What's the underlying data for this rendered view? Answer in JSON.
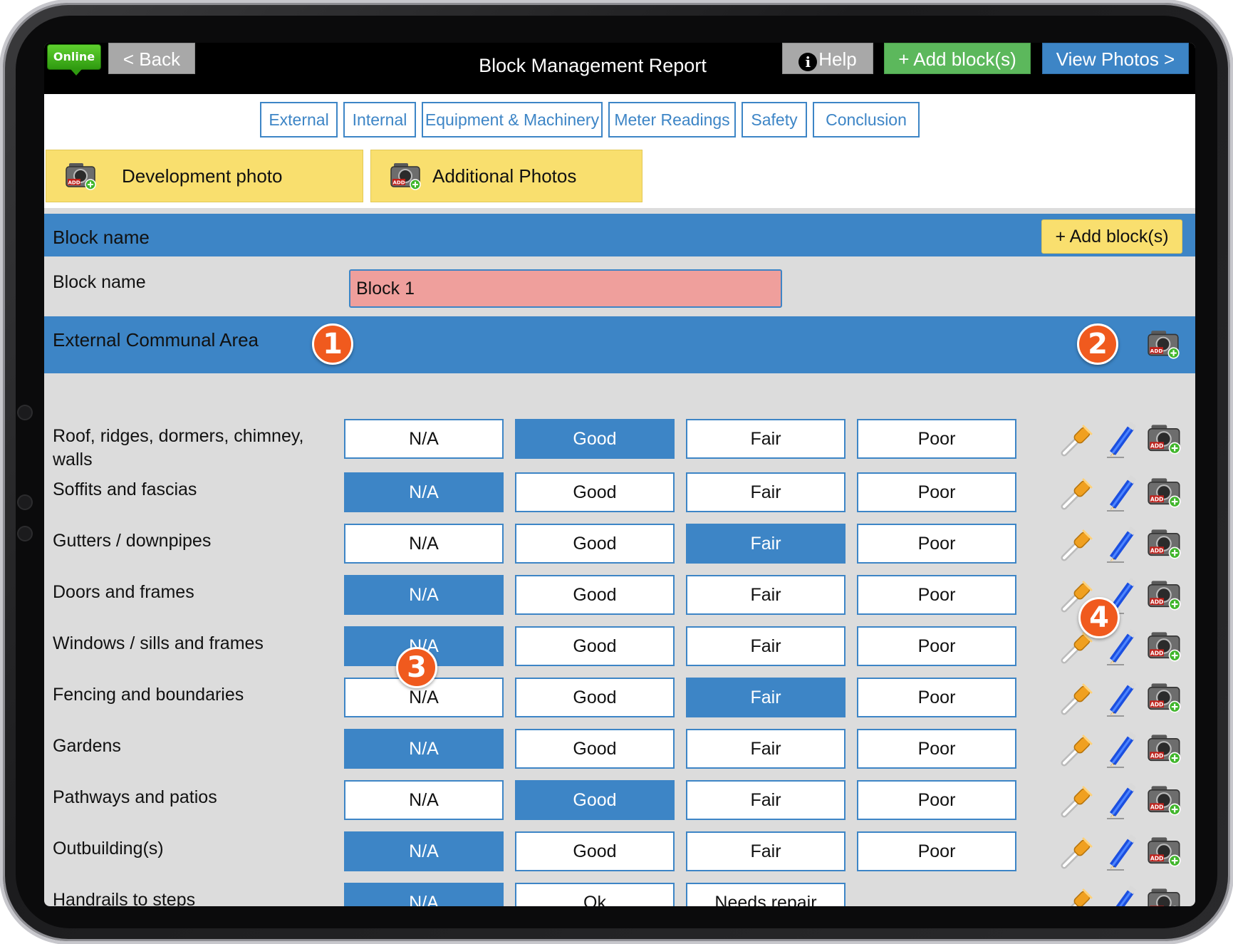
{
  "header": {
    "status_badge": "Online",
    "back_label": "< Back",
    "title": "Block Management Report",
    "help_label": "Help",
    "help_icon_glyph": "i",
    "add_block_label": "+ Add block(s)",
    "view_photos_label": "View Photos >"
  },
  "tabs": [
    {
      "label": "External"
    },
    {
      "label": "Internal"
    },
    {
      "label": "Equipment & Machinery"
    },
    {
      "label": "Meter Readings"
    },
    {
      "label": "Safety"
    },
    {
      "label": "Conclusion"
    }
  ],
  "photos": {
    "development_label": "Development photo",
    "additional_label": "Additional Photos"
  },
  "block_section": {
    "title": "Block name",
    "add_block_label": "+ Add block(s)",
    "field_label": "Block name",
    "field_value": "Block 1"
  },
  "external_section": {
    "title": "External Communal Area"
  },
  "callouts": [
    "1",
    "2",
    "3",
    "4"
  ],
  "items": [
    {
      "label": "Roof, ridges, dormers, chimney, walls",
      "options": [
        "N/A",
        "Good",
        "Fair",
        "Poor"
      ],
      "selected": 1
    },
    {
      "label": "Soffits and fascias",
      "options": [
        "N/A",
        "Good",
        "Fair",
        "Poor"
      ],
      "selected": 0
    },
    {
      "label": "Gutters / downpipes",
      "options": [
        "N/A",
        "Good",
        "Fair",
        "Poor"
      ],
      "selected": 2
    },
    {
      "label": "Doors and frames",
      "options": [
        "N/A",
        "Good",
        "Fair",
        "Poor"
      ],
      "selected": 0
    },
    {
      "label": "Windows / sills and frames",
      "options": [
        "N/A",
        "Good",
        "Fair",
        "Poor"
      ],
      "selected": 0
    },
    {
      "label": "Fencing and boundaries",
      "options": [
        "N/A",
        "Good",
        "Fair",
        "Poor"
      ],
      "selected": 2
    },
    {
      "label": "Gardens",
      "options": [
        "N/A",
        "Good",
        "Fair",
        "Poor"
      ],
      "selected": 0
    },
    {
      "label": "Pathways and patios",
      "options": [
        "N/A",
        "Good",
        "Fair",
        "Poor"
      ],
      "selected": 1
    },
    {
      "label": "Outbuilding(s)",
      "options": [
        "N/A",
        "Good",
        "Fair",
        "Poor"
      ],
      "selected": 0
    },
    {
      "label": "Handrails to steps",
      "options": [
        "N/A",
        "Ok",
        "Needs repair"
      ],
      "selected": 0
    }
  ],
  "icons": {
    "camera": "camera-add-icon",
    "eyedropper": "eyedropper-icon",
    "pencil": "pencil-icon"
  },
  "colors": {
    "accent_blue": "#3d85c6",
    "online_green": "#3fae1a",
    "add_green": "#5cb85c",
    "button_gray": "#a8a8a8",
    "photo_yellow": "#f9df6e",
    "field_error_red": "#ef9f9c",
    "callout_orange": "#f05a1e"
  }
}
